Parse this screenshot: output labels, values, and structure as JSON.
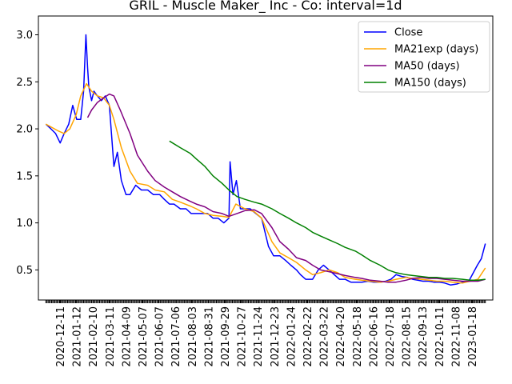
{
  "chart_data": {
    "type": "line",
    "title": "GRIL - Muscle Maker_ Inc - Co: interval=1d",
    "xlabel": "",
    "ylabel": "",
    "ylim": [
      0.18,
      3.2
    ],
    "xlim": [
      "2020-11-28",
      "2023-01-31"
    ],
    "y_ticks": [
      0.5,
      1.0,
      1.5,
      2.0,
      2.5,
      3.0
    ],
    "y_tick_labels": [
      "0.5",
      "1.0",
      "1.5",
      "2.0",
      "2.5",
      "3.0"
    ],
    "x_tick_labels": [
      "2020-12-11",
      "2021-01-12",
      "2021-02-10",
      "2021-03-11",
      "2021-04-09",
      "2021-05-07",
      "2021-06-07",
      "2021-07-06",
      "2021-08-03",
      "2021-08-31",
      "2021-09-29",
      "2021-10-27",
      "2021-11-24",
      "2021-12-23",
      "2022-01-24",
      "2022-02-22",
      "2022-03-22",
      "2022-04-20",
      "2022-05-18",
      "2022-06-16",
      "2022-07-18",
      "2022-08-15",
      "2022-09-13",
      "2022-10-11",
      "2022-11-08",
      "2023-01-18"
    ],
    "grid": false,
    "legend": "top-right",
    "series": [
      {
        "name": "Close",
        "color": "#0000ff",
        "x": [
          "2020-12-11",
          "2020-12-20",
          "2020-12-28",
          "2021-01-05",
          "2021-01-12",
          "2021-01-20",
          "2021-01-27",
          "2021-02-03",
          "2021-02-10",
          "2021-02-15",
          "2021-02-19",
          "2021-02-22",
          "2021-02-24",
          "2021-03-01",
          "2021-03-05",
          "2021-03-11",
          "2021-03-18",
          "2021-03-25",
          "2021-04-01",
          "2021-04-09",
          "2021-04-15",
          "2021-04-22",
          "2021-04-30",
          "2021-05-07",
          "2021-05-17",
          "2021-05-27",
          "2021-06-07",
          "2021-06-17",
          "2021-06-28",
          "2021-07-06",
          "2021-07-15",
          "2021-07-23",
          "2021-08-03",
          "2021-08-13",
          "2021-08-22",
          "2021-08-31",
          "2021-09-10",
          "2021-09-20",
          "2021-09-29",
          "2021-10-08",
          "2021-10-18",
          "2021-10-27",
          "2021-10-29",
          "2021-11-03",
          "2021-11-09",
          "2021-11-16",
          "2021-11-24",
          "2021-12-03",
          "2021-12-13",
          "2021-12-23",
          "2022-01-04",
          "2022-01-13",
          "2022-01-24",
          "2022-02-03",
          "2022-02-12",
          "2022-02-22",
          "2022-03-01",
          "2022-03-10",
          "2022-03-22",
          "2022-04-01",
          "2022-04-10",
          "2022-04-20",
          "2022-04-29",
          "2022-05-08",
          "2022-05-18",
          "2022-05-28",
          "2022-06-07",
          "2022-06-16",
          "2022-06-27",
          "2022-07-07",
          "2022-07-18",
          "2022-07-28",
          "2022-08-06",
          "2022-08-15",
          "2022-08-25",
          "2022-09-04",
          "2022-09-13",
          "2022-09-22",
          "2022-10-01",
          "2022-10-11",
          "2022-10-20",
          "2022-10-30",
          "2022-11-08",
          "2022-11-18",
          "2022-11-29",
          "2022-12-09",
          "2022-12-20",
          "2023-01-04",
          "2023-01-11",
          "2023-01-18"
        ],
        "y": [
          2.05,
          2.0,
          1.95,
          1.85,
          1.95,
          2.05,
          2.25,
          2.1,
          2.1,
          2.4,
          3.0,
          2.65,
          2.45,
          2.3,
          2.4,
          2.35,
          2.3,
          2.35,
          2.25,
          1.6,
          1.75,
          1.45,
          1.3,
          1.3,
          1.4,
          1.35,
          1.35,
          1.3,
          1.3,
          1.25,
          1.2,
          1.2,
          1.15,
          1.15,
          1.1,
          1.1,
          1.1,
          1.1,
          1.05,
          1.05,
          1.0,
          1.05,
          1.65,
          1.3,
          1.45,
          1.15,
          1.15,
          1.15,
          1.1,
          1.05,
          0.75,
          0.65,
          0.65,
          0.6,
          0.55,
          0.5,
          0.45,
          0.4,
          0.4,
          0.5,
          0.55,
          0.5,
          0.45,
          0.4,
          0.4,
          0.37,
          0.37,
          0.37,
          0.38,
          0.37,
          0.37,
          0.38,
          0.4,
          0.45,
          0.43,
          0.42,
          0.4,
          0.39,
          0.38,
          0.38,
          0.37,
          0.37,
          0.36,
          0.34,
          0.35,
          0.37,
          0.38,
          0.55,
          0.62,
          0.78
        ]
      },
      {
        "name": "MA21exp (days)",
        "color": "#ffa500",
        "x": [
          "2020-12-11",
          "2021-01-01",
          "2021-01-12",
          "2021-01-22",
          "2021-02-02",
          "2021-02-10",
          "2021-02-20",
          "2021-03-01",
          "2021-03-11",
          "2021-03-22",
          "2021-04-01",
          "2021-04-09",
          "2021-04-22",
          "2021-05-07",
          "2021-05-20",
          "2021-06-07",
          "2021-06-20",
          "2021-07-06",
          "2021-07-20",
          "2021-08-03",
          "2021-08-20",
          "2021-08-31",
          "2021-09-15",
          "2021-09-29",
          "2021-10-15",
          "2021-10-27",
          "2021-11-08",
          "2021-11-24",
          "2021-12-10",
          "2021-12-23",
          "2022-01-10",
          "2022-01-24",
          "2022-02-08",
          "2022-02-22",
          "2022-03-10",
          "2022-03-22",
          "2022-04-05",
          "2022-04-20",
          "2022-05-05",
          "2022-05-18",
          "2022-06-05",
          "2022-06-16",
          "2022-07-01",
          "2022-07-18",
          "2022-08-01",
          "2022-08-15",
          "2022-09-01",
          "2022-09-13",
          "2022-09-28",
          "2022-10-11",
          "2022-10-25",
          "2022-11-08",
          "2022-11-22",
          "2022-12-09",
          "2022-12-22",
          "2023-01-05",
          "2023-01-18"
        ],
        "y": [
          2.05,
          1.98,
          1.95,
          2.0,
          2.15,
          2.35,
          2.48,
          2.4,
          2.35,
          2.33,
          2.25,
          2.1,
          1.8,
          1.55,
          1.42,
          1.4,
          1.35,
          1.33,
          1.25,
          1.22,
          1.18,
          1.15,
          1.1,
          1.08,
          1.07,
          1.06,
          1.2,
          1.15,
          1.12,
          1.05,
          0.8,
          0.68,
          0.63,
          0.58,
          0.5,
          0.45,
          0.47,
          0.5,
          0.47,
          0.42,
          0.4,
          0.39,
          0.38,
          0.37,
          0.38,
          0.4,
          0.42,
          0.41,
          0.4,
          0.39,
          0.38,
          0.38,
          0.37,
          0.36,
          0.38,
          0.4,
          0.52
        ]
      },
      {
        "name": "MA50 (days)",
        "color": "#800080",
        "x": [
          "2021-02-22",
          "2021-03-01",
          "2021-03-11",
          "2021-03-22",
          "2021-04-01",
          "2021-04-09",
          "2021-04-20",
          "2021-05-07",
          "2021-05-20",
          "2021-06-07",
          "2021-06-20",
          "2021-07-06",
          "2021-07-20",
          "2021-08-03",
          "2021-08-20",
          "2021-08-31",
          "2021-09-15",
          "2021-09-29",
          "2021-10-15",
          "2021-10-27",
          "2021-11-10",
          "2021-11-24",
          "2021-12-10",
          "2021-12-23",
          "2022-01-10",
          "2022-01-24",
          "2022-02-08",
          "2022-02-22",
          "2022-03-10",
          "2022-03-22",
          "2022-04-05",
          "2022-04-20",
          "2022-05-05",
          "2022-05-18",
          "2022-06-05",
          "2022-06-16",
          "2022-07-01",
          "2022-07-18",
          "2022-08-01",
          "2022-08-15",
          "2022-09-01",
          "2022-09-13",
          "2022-09-28",
          "2022-10-11",
          "2022-10-25",
          "2022-11-08",
          "2022-11-22",
          "2022-12-09",
          "2022-12-22",
          "2023-01-05",
          "2023-01-18"
        ],
        "y": [
          2.12,
          2.2,
          2.28,
          2.33,
          2.37,
          2.35,
          2.2,
          1.95,
          1.72,
          1.55,
          1.45,
          1.38,
          1.33,
          1.28,
          1.23,
          1.2,
          1.17,
          1.12,
          1.1,
          1.07,
          1.1,
          1.13,
          1.14,
          1.1,
          0.95,
          0.8,
          0.72,
          0.63,
          0.6,
          0.55,
          0.5,
          0.48,
          0.46,
          0.44,
          0.42,
          0.41,
          0.39,
          0.38,
          0.37,
          0.37,
          0.39,
          0.41,
          0.42,
          0.41,
          0.41,
          0.4,
          0.39,
          0.38,
          0.38,
          0.38,
          0.4
        ]
      },
      {
        "name": "MA150 (days)",
        "color": "#008000",
        "x": [
          "2021-07-15",
          "2021-08-03",
          "2021-08-20",
          "2021-08-31",
          "2021-09-15",
          "2021-09-29",
          "2021-10-15",
          "2021-10-27",
          "2021-11-10",
          "2021-11-24",
          "2021-12-10",
          "2021-12-23",
          "2022-01-10",
          "2022-01-24",
          "2022-02-08",
          "2022-02-22",
          "2022-03-10",
          "2022-03-22",
          "2022-04-05",
          "2022-04-20",
          "2022-05-05",
          "2022-05-18",
          "2022-06-05",
          "2022-06-16",
          "2022-07-01",
          "2022-07-18",
          "2022-08-01",
          "2022-08-15",
          "2022-09-01",
          "2022-09-13",
          "2022-09-28",
          "2022-10-11",
          "2022-10-25",
          "2022-11-08",
          "2022-11-22",
          "2022-12-09",
          "2022-12-22",
          "2023-01-05",
          "2023-01-18"
        ],
        "y": [
          1.87,
          1.8,
          1.74,
          1.68,
          1.6,
          1.5,
          1.42,
          1.35,
          1.28,
          1.25,
          1.22,
          1.2,
          1.15,
          1.1,
          1.05,
          1.0,
          0.95,
          0.9,
          0.86,
          0.82,
          0.78,
          0.74,
          0.7,
          0.66,
          0.6,
          0.55,
          0.5,
          0.47,
          0.45,
          0.44,
          0.43,
          0.42,
          0.42,
          0.41,
          0.41,
          0.4,
          0.39,
          0.39,
          0.4
        ]
      }
    ]
  }
}
